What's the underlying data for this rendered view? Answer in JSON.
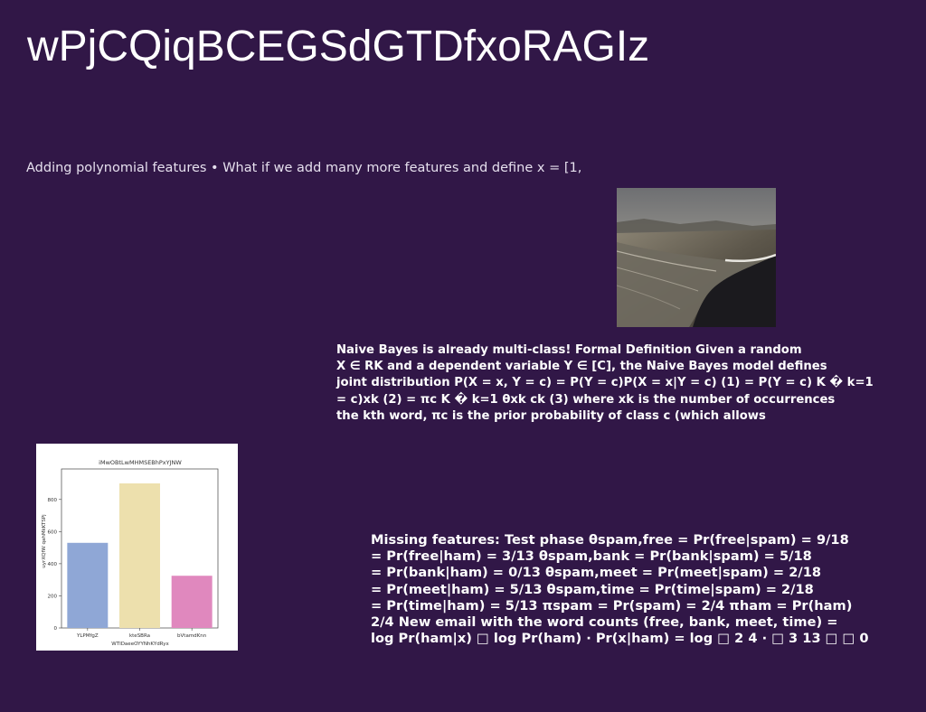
{
  "page": {
    "title": "wPjCQiqBCEGSdGTDfxoRAGIz",
    "subtitle": "Adding polynomial features • What if we add many more features and define x = [1,"
  },
  "naive_bayes_text": {
    "lines": [
      "Naive Bayes is already multi-class! Formal Definition Given a random",
      "X ∈ RK and a dependent variable Y ∈ [C], the Naive Bayes model defines",
      "joint distribution P(X = x, Y = c) = P(Y = c)P(X = x|Y = c) (1) = P(Y = c) K � k=1",
      "= c)xk (2) = πc K � k=1 θxk ck (3) where xk is the number of occurrences",
      "the kth word, πc is the prior probability of class c (which allows"
    ]
  },
  "missing_features_text": {
    "lines": [
      "Missing features: Test phase θspam,free = Pr(free|spam) = 9/18",
      "= Pr(free|ham) = 3/13 θspam,bank = Pr(bank|spam) = 5/18",
      "= Pr(bank|ham) = 0/13 θspam,meet = Pr(meet|spam) = 2/18",
      "= Pr(meet|ham) = 5/13 θspam,time = Pr(time|spam) = 2/18",
      "= Pr(time|ham) = 5/13 πspam = Pr(spam) = 2/4 πham = Pr(ham)",
      "2/4 New email with the word counts (free, bank, meet, time) =",
      "log Pr(ham|x) □ log Pr(ham) · Pr(x|ham) = log □ 2 4 · □ 3 13 □ □ 0"
    ]
  },
  "chart_data": {
    "type": "bar",
    "title": "iMwOBtLwMHMSEBhPxYJNW",
    "xlabel": "WTIDaeeOYYNhKYdRyx",
    "ylabel": "uyrXQfW qahMkKTSPj",
    "categories": [
      "YLPMfgZ",
      "kteSBRa",
      "bVtamdKnn"
    ],
    "values": [
      530,
      900,
      325
    ],
    "colors": [
      "#8fa7d6",
      "#ede0ad",
      "#e088be"
    ],
    "yticks": [
      0,
      200,
      400,
      600,
      800
    ],
    "ylim": [
      0,
      990
    ],
    "grid": false
  }
}
